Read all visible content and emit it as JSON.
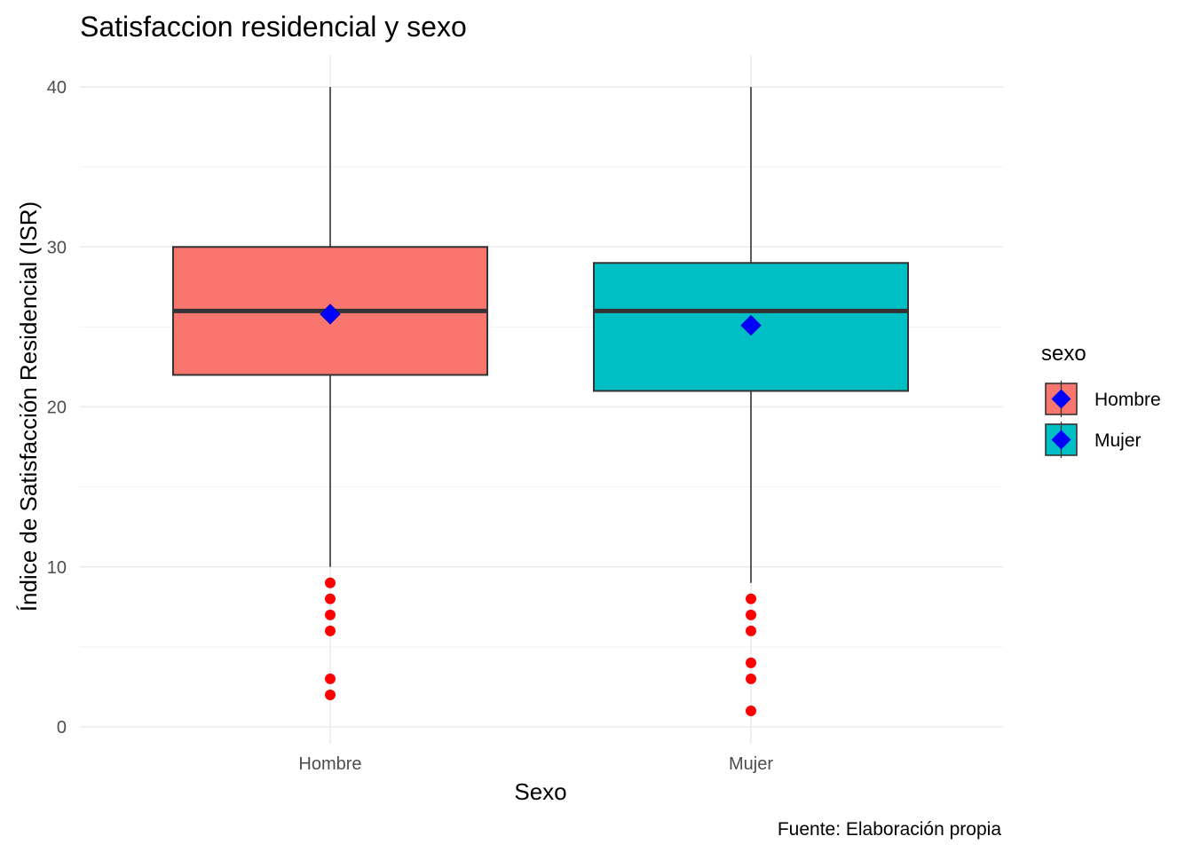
{
  "chart_data": {
    "type": "boxplot",
    "title": "Satisfaccion residencial y sexo",
    "xlabel": "Sexo",
    "ylabel": "Índice de Satisfacción Residencial (ISR)",
    "caption": "Fuente: Elaboración propia",
    "ylim": [
      0,
      40
    ],
    "yticks": [
      0,
      10,
      20,
      30,
      40
    ],
    "grid": true,
    "legend": {
      "title": "sexo",
      "position": "right"
    },
    "categories": [
      "Hombre",
      "Mujer"
    ],
    "series": [
      {
        "name": "Hombre",
        "color": "#F8766D",
        "whisker_low": 10,
        "q1": 22,
        "median": 26,
        "q3": 30,
        "whisker_high": 40,
        "mean": 25.8,
        "outliers": [
          9,
          8,
          7,
          6,
          3,
          2
        ]
      },
      {
        "name": "Mujer",
        "color": "#00BFC4",
        "whisker_low": 9,
        "q1": 21,
        "median": 26,
        "q3": 29,
        "whisker_high": 40,
        "mean": 25.1,
        "outliers": [
          8,
          7,
          6,
          4,
          3,
          1
        ]
      }
    ],
    "outlier_color": "#FF0000",
    "mean_marker_color": "#0000FF"
  }
}
